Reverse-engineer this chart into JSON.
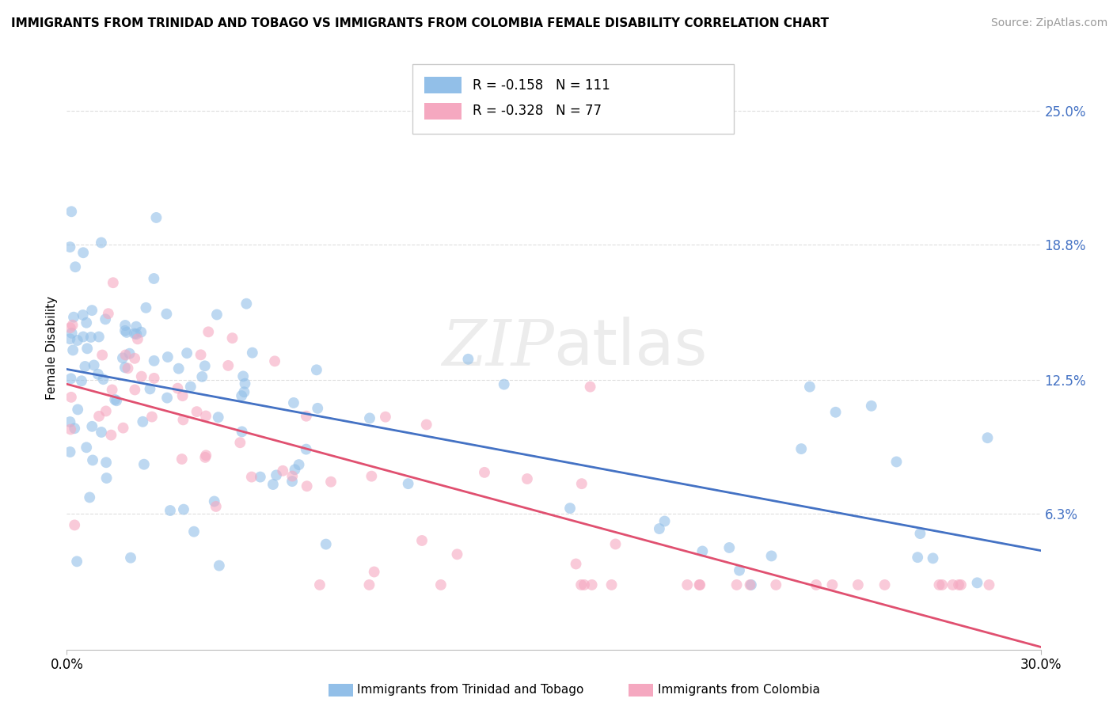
{
  "title": "IMMIGRANTS FROM TRINIDAD AND TOBAGO VS IMMIGRANTS FROM COLOMBIA FEMALE DISABILITY CORRELATION CHART",
  "source": "Source: ZipAtlas.com",
  "ylabel": "Female Disability",
  "x_min": 0.0,
  "x_max": 0.3,
  "y_min": 0.0,
  "y_max": 0.28,
  "y_tick_vals": [
    0.063,
    0.125,
    0.188,
    0.25
  ],
  "y_tick_labels": [
    "6.3%",
    "12.5%",
    "18.8%",
    "25.0%"
  ],
  "color_blue": "#92bfe8",
  "color_pink": "#f5a8c0",
  "line_blue": "#4472c4",
  "line_pink": "#e05070",
  "r_blue": -0.158,
  "n_blue": 111,
  "r_pink": -0.328,
  "n_pink": 77,
  "legend_label_blue": "Immigrants from Trinidad and Tobago",
  "legend_label_pink": "Immigrants from Colombia",
  "watermark_zip": "ZIP",
  "watermark_atlas": "atlas",
  "background_color": "#ffffff",
  "grid_color": "#dddddd",
  "tick_color": "#4472c4",
  "source_color": "#999999",
  "title_fontsize": 11,
  "source_fontsize": 10,
  "scatter_size": 100,
  "scatter_alpha": 0.6
}
